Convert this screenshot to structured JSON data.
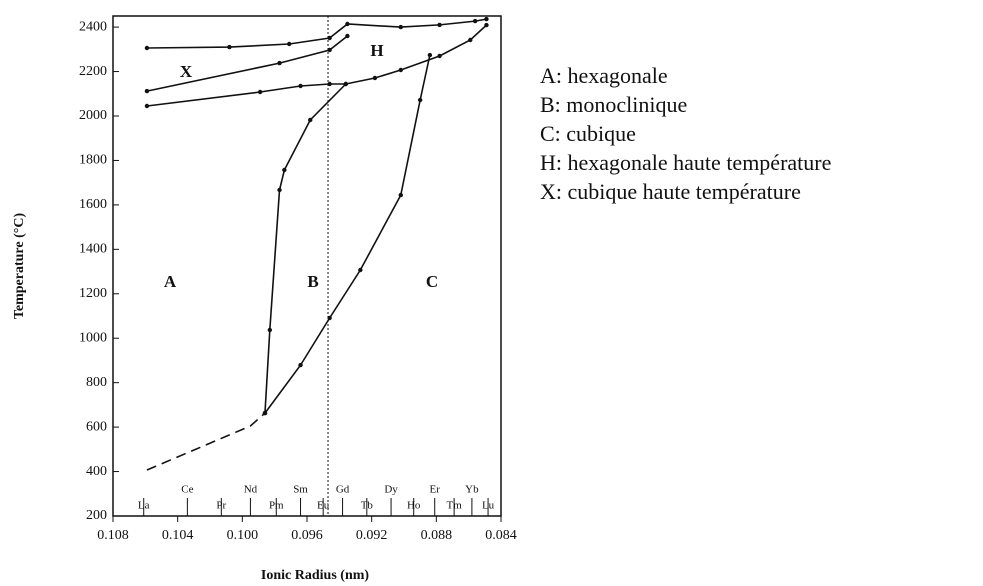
{
  "chart_data": {
    "type": "line",
    "x_label": "Ionic Radius (nm)",
    "y_label": "Temperature (°C)",
    "xlim": [
      0.108,
      0.084
    ],
    "ylim": [
      200,
      2450
    ],
    "xticks": [
      0.108,
      0.104,
      {
        "value": 0.1,
        "label": "0.100"
      },
      0.096,
      0.092,
      0.088,
      0.084
    ],
    "yticks": [
      200,
      400,
      600,
      800,
      1000,
      1200,
      1400,
      1600,
      1800,
      2000,
      2200,
      2400
    ],
    "reference_x": 0.0947,
    "elements": [
      {
        "label": "La",
        "value": 0.1061
      },
      {
        "label": "Ce",
        "value": 0.1034
      },
      {
        "label": "Pr",
        "value": 0.1013
      },
      {
        "label": "Nd",
        "value": 0.0995
      },
      {
        "label": "Pm",
        "value": 0.0979
      },
      {
        "label": "Sm",
        "value": 0.0964
      },
      {
        "label": "Eu",
        "value": 0.095
      },
      {
        "label": "Gd",
        "value": 0.0938
      },
      {
        "label": "Tb",
        "value": 0.0923
      },
      {
        "label": "Dy",
        "value": 0.0908
      },
      {
        "label": "Ho",
        "value": 0.0894
      },
      {
        "label": "Er",
        "value": 0.0881
      },
      {
        "label": "Tm",
        "value": 0.0869
      },
      {
        "label": "Yb",
        "value": 0.0858
      },
      {
        "label": "Lu",
        "value": 0.0848
      }
    ],
    "annotations": [
      "A",
      "B",
      "C",
      "H",
      "X"
    ],
    "legend_text": [
      "A: hexagonale",
      "B: monoclinique",
      "C: cubique",
      "H: hexagonale haute température",
      "X: cubique haute température"
    ],
    "series": [
      {
        "color": "#111",
        "x": [
          0.1059,
          0.1008,
          0.0971,
          0.0946,
          0.0935,
          0.0902,
          0.0878,
          0.0856,
          0.0849
        ],
        "values": [
          2306,
          2310,
          2324,
          2351,
          2414,
          2400,
          2410,
          2427,
          2436
        ]
      },
      {
        "color": "#111",
        "x": [
          0.1059,
          0.0977,
          0.0946,
          0.0935
        ],
        "values": [
          2112,
          2238,
          2297,
          2360
        ]
      },
      {
        "color": "#111",
        "x": [
          0.1059,
          0.0989,
          0.0964,
          0.0946,
          0.0936,
          0.0918,
          0.0902,
          0.0878,
          0.0859,
          0.0849
        ],
        "values": [
          2045,
          2108,
          2135,
          2144,
          2144,
          2171,
          2207,
          2270,
          2342,
          2409
        ]
      },
      {
        "color": "#111",
        "dashed": true,
        "x": [
          0.1059,
          0.0995,
          0.0986
        ],
        "values": [
          407,
          605,
          663
        ]
      },
      {
        "color": "#111",
        "x": [
          0.0986,
          0.0983,
          0.0977,
          0.0974,
          0.0958,
          0.0936
        ],
        "values": [
          663,
          1037,
          1667,
          1757,
          1982,
          2144
        ]
      },
      {
        "color": "#111",
        "x": [
          0.0986,
          0.0964,
          0.0946,
          0.0927,
          0.0902,
          0.089,
          0.0884
        ],
        "values": [
          663,
          879,
          1091,
          1307,
          1644,
          2072,
          2274
        ]
      }
    ]
  }
}
